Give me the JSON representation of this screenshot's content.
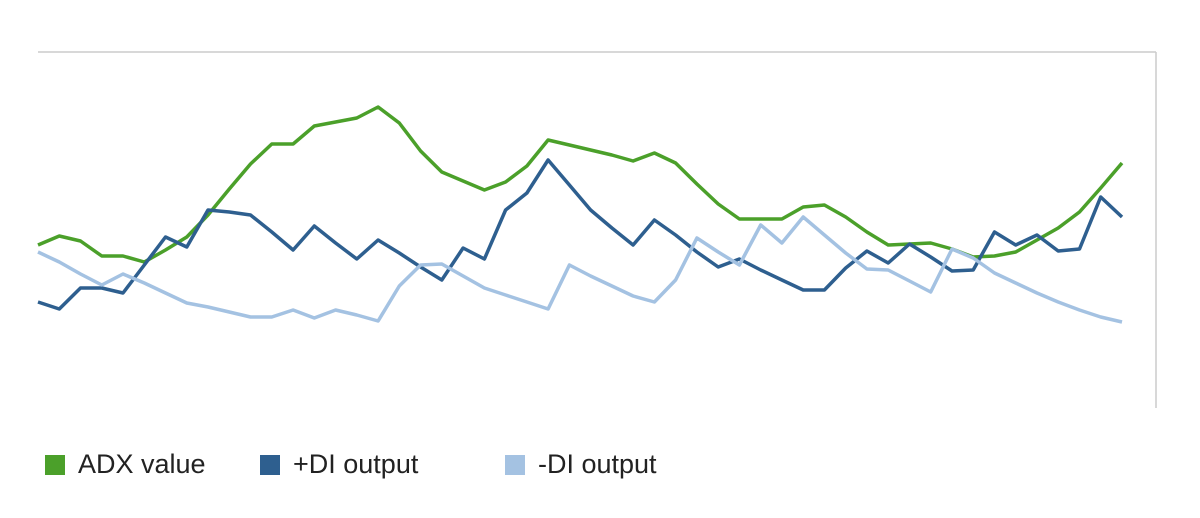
{
  "chart_data": {
    "type": "line",
    "categories": [
      null,
      null,
      null,
      null,
      null,
      null,
      null,
      null,
      null,
      null,
      null,
      null,
      null,
      null,
      null,
      null,
      null,
      null,
      null,
      null,
      null,
      null,
      null,
      null,
      null,
      null,
      null,
      null,
      null,
      null,
      null,
      null,
      null,
      null,
      null,
      null,
      null,
      null,
      null,
      null,
      null,
      null,
      null,
      null,
      null,
      null,
      null,
      null,
      null,
      null,
      null,
      null
    ],
    "ylim": [
      0,
      356
    ],
    "series": [
      {
        "name": "ADX value",
        "color": "#4ba02a",
        "values": [
          163,
          172,
          167,
          152,
          152,
          146,
          158,
          171,
          193,
          219,
          244,
          264,
          264,
          282,
          286,
          290,
          301,
          285,
          257,
          236,
          227,
          218,
          226,
          242,
          268,
          263,
          258,
          253,
          247,
          255,
          245,
          224,
          204,
          189,
          189,
          189,
          201,
          203,
          191,
          176,
          163,
          164,
          165,
          159,
          151,
          152,
          156,
          168,
          180,
          196,
          220,
          245
        ]
      },
      {
        "name": "+DI output",
        "color": "#2e5f8f",
        "values": [
          106,
          99,
          120,
          120,
          115,
          143,
          171,
          161,
          198,
          196,
          193,
          176,
          158,
          182,
          165,
          149,
          168,
          155,
          141,
          128,
          160,
          149,
          198,
          215,
          248,
          223,
          198,
          180,
          163,
          188,
          173,
          156,
          141,
          149,
          138,
          128,
          118,
          118,
          140,
          157,
          145,
          164,
          151,
          137,
          138,
          176,
          163,
          173,
          157,
          159,
          211,
          191
        ]
      },
      {
        "name": "-DI output",
        "color": "#a4c2e2",
        "values": [
          156,
          146,
          134,
          123,
          134,
          125,
          115,
          105,
          101,
          96,
          91,
          91,
          98,
          90,
          98,
          93,
          87,
          122,
          143,
          144,
          132,
          120,
          113,
          106,
          99,
          143,
          132,
          122,
          112,
          106,
          128,
          170,
          156,
          143,
          183,
          165,
          191,
          173,
          155,
          139,
          138,
          127,
          116,
          159,
          150,
          135,
          125,
          115,
          106,
          98,
          91,
          86
        ]
      }
    ]
  }
}
